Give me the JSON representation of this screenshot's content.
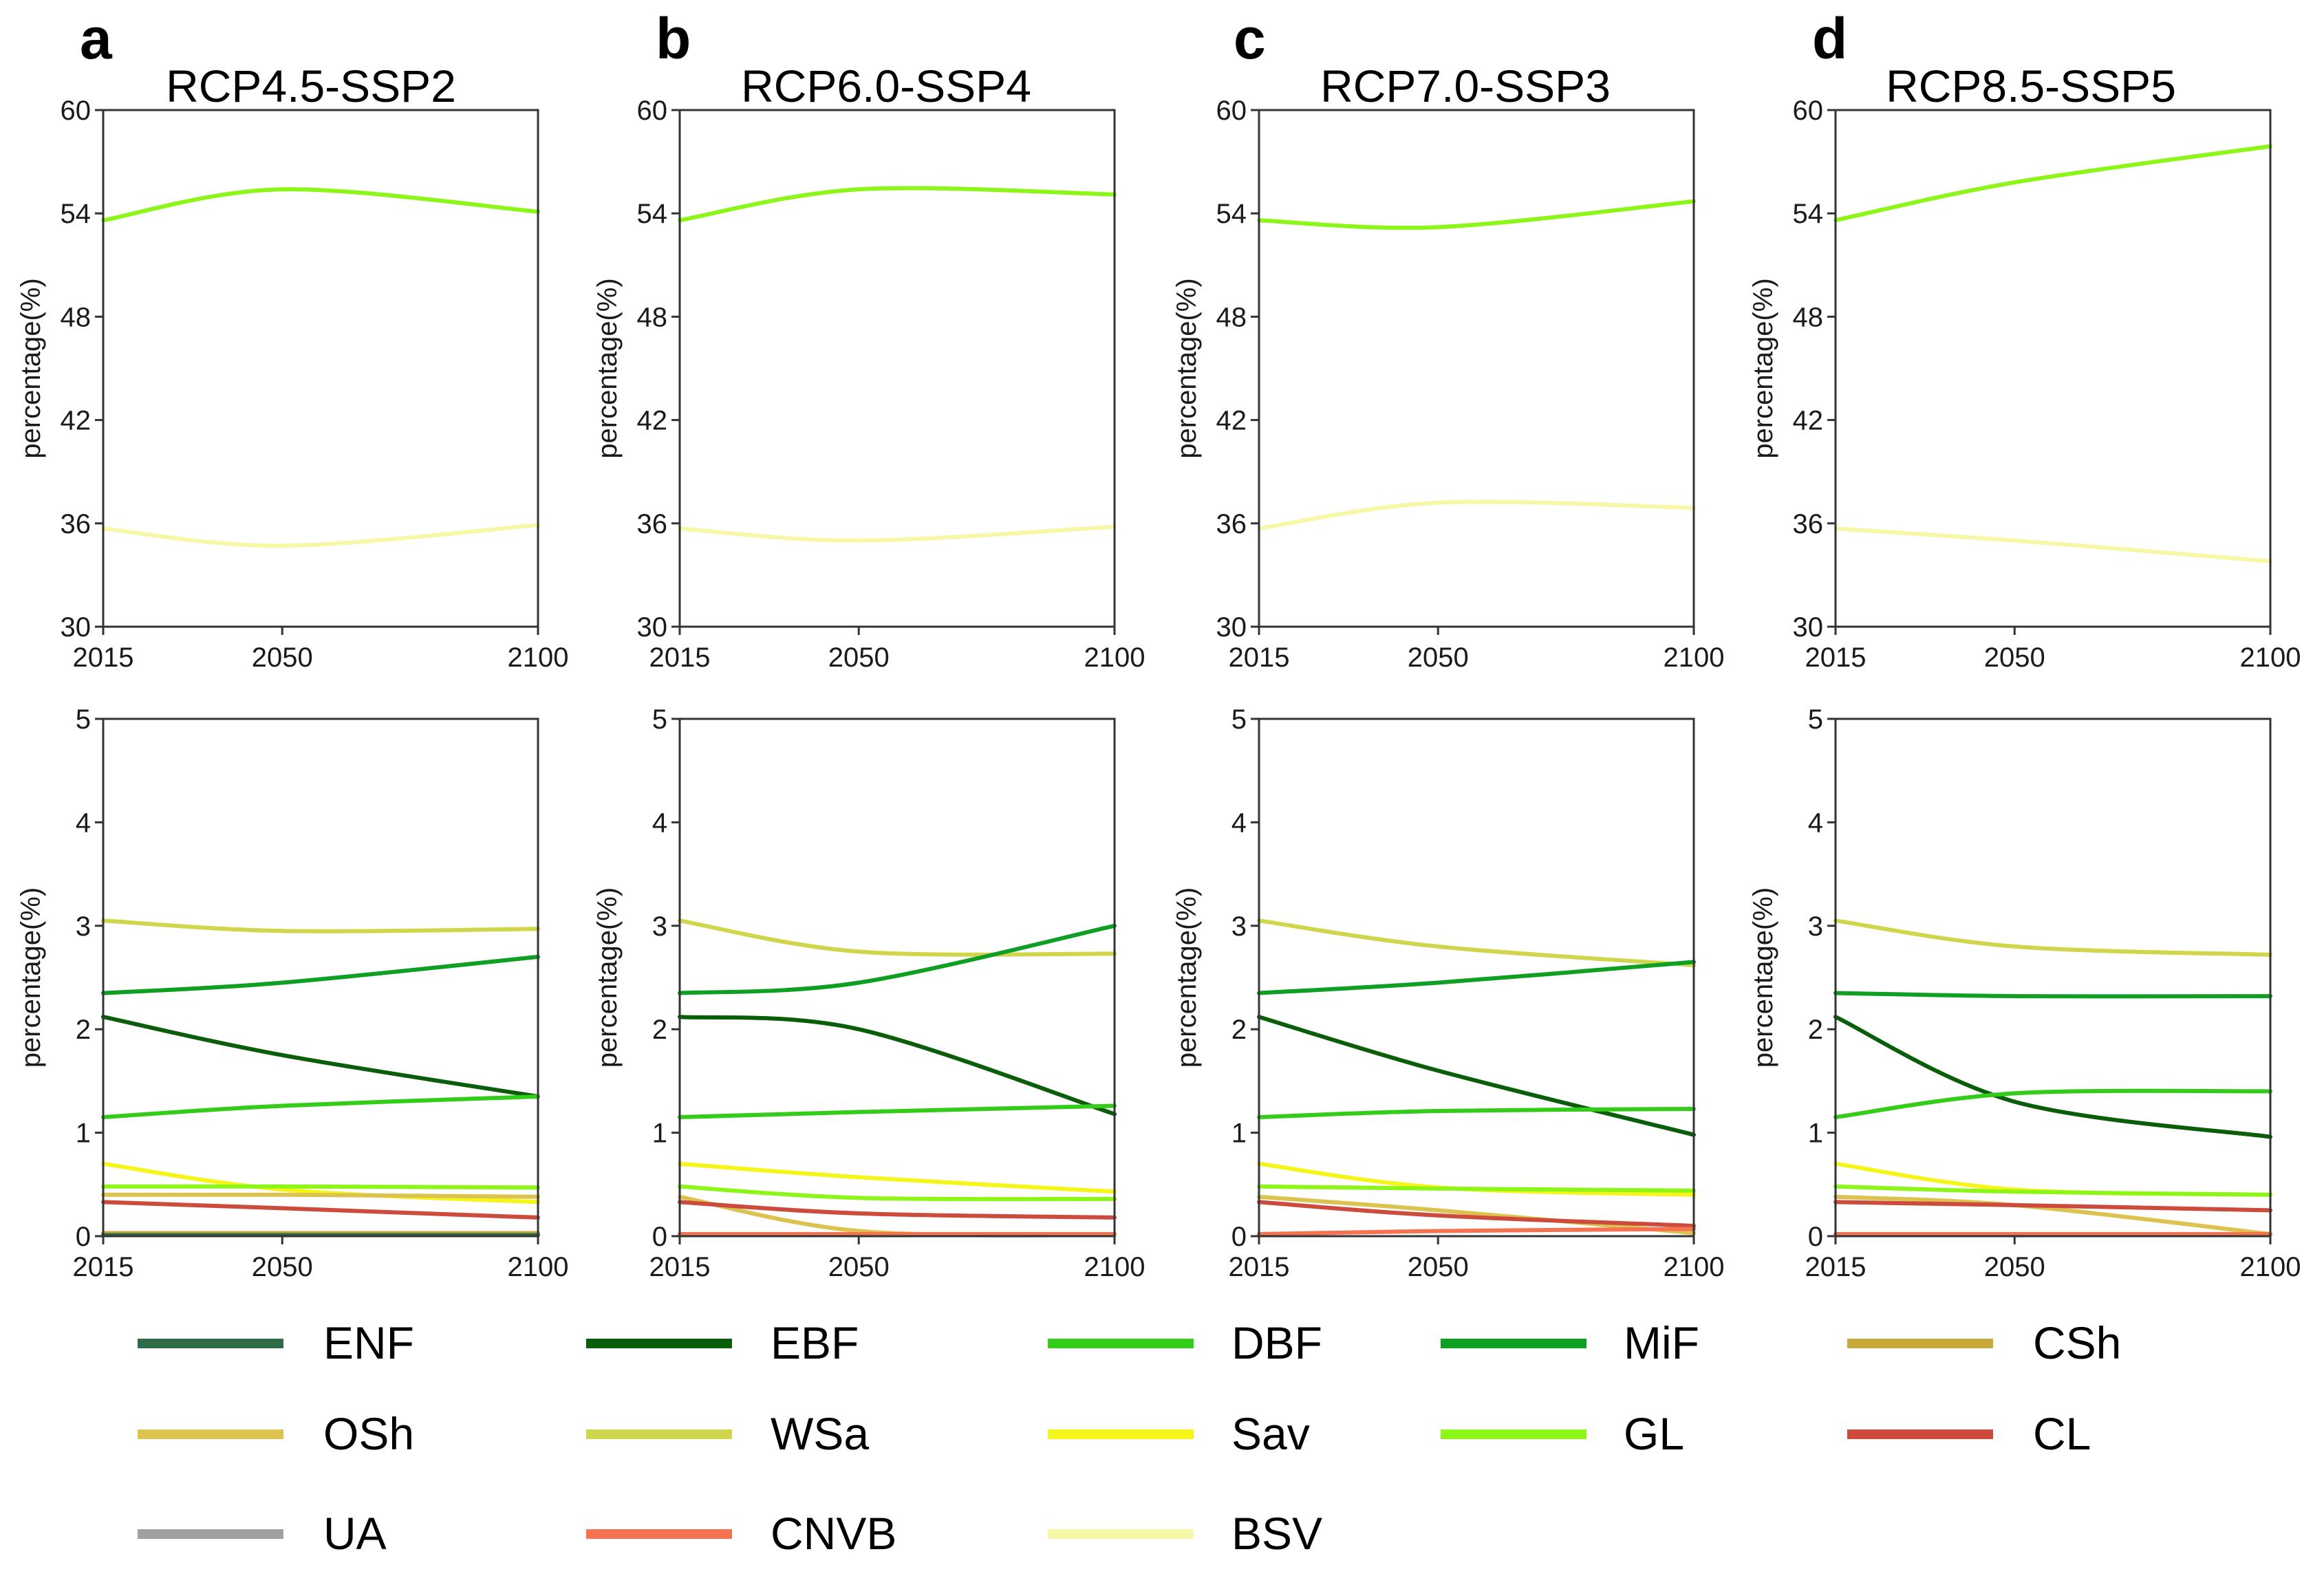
{
  "colors": {
    "ENF": "#2e6b48",
    "EBF": "#0a5e0a",
    "DBF": "#33cc19",
    "MiF": "#0f9f22",
    "CSh": "#c8aa3c",
    "OSh": "#dcc24e",
    "WSa": "#cfd64c",
    "Sav": "#f5f519",
    "GL": "#8ef519",
    "CL": "#cc4b3c",
    "UA": "#a0a0a0",
    "CNVB": "#f57350",
    "BSV": "#f7f7a8"
  },
  "legend": [
    "ENF",
    "EBF",
    "DBF",
    "MiF",
    "CSh",
    "OSh",
    "WSa",
    "Sav",
    "GL",
    "CL",
    "UA",
    "CNVB",
    "BSV"
  ],
  "chart_data": [
    {
      "panel": "a",
      "title": "RCP4.5-SSP2",
      "row": "top",
      "type": "line",
      "x": [
        2015,
        2050,
        2100
      ],
      "ylim": [
        30,
        60
      ],
      "yticks": [
        30,
        36,
        42,
        48,
        54,
        60
      ],
      "ylabel": "percentage(%)",
      "series": [
        {
          "name": "GL",
          "values": [
            53.6,
            55.4,
            54.1
          ]
        },
        {
          "name": "BSV",
          "values": [
            35.7,
            34.7,
            35.9
          ]
        }
      ]
    },
    {
      "panel": "b",
      "title": "RCP6.0-SSP4",
      "row": "top",
      "type": "line",
      "x": [
        2015,
        2050,
        2100
      ],
      "ylim": [
        30,
        60
      ],
      "yticks": [
        30,
        36,
        42,
        48,
        54,
        60
      ],
      "ylabel": "percentage(%)",
      "series": [
        {
          "name": "GL",
          "values": [
            53.6,
            55.4,
            55.1
          ]
        },
        {
          "name": "BSV",
          "values": [
            35.7,
            35.0,
            35.8
          ]
        }
      ]
    },
    {
      "panel": "c",
      "title": "RCP7.0-SSP3",
      "row": "top",
      "type": "line",
      "x": [
        2015,
        2050,
        2100
      ],
      "ylim": [
        30,
        60
      ],
      "yticks": [
        30,
        36,
        42,
        48,
        54,
        60
      ],
      "ylabel": "percentage(%)",
      "series": [
        {
          "name": "GL",
          "values": [
            53.6,
            53.2,
            54.7
          ]
        },
        {
          "name": "BSV",
          "values": [
            35.7,
            37.2,
            36.9
          ]
        }
      ]
    },
    {
      "panel": "d",
      "title": "RCP8.5-SSP5",
      "row": "top",
      "type": "line",
      "x": [
        2015,
        2050,
        2100
      ],
      "ylim": [
        30,
        60
      ],
      "yticks": [
        30,
        36,
        42,
        48,
        54,
        60
      ],
      "ylabel": "percentage(%)",
      "series": [
        {
          "name": "GL",
          "values": [
            53.6,
            55.8,
            57.9
          ]
        },
        {
          "name": "BSV",
          "values": [
            35.7,
            35.0,
            33.8
          ]
        }
      ]
    },
    {
      "panel": "a",
      "row": "bottom",
      "type": "line",
      "x": [
        2015,
        2050,
        2100
      ],
      "ylim": [
        0,
        5
      ],
      "yticks": [
        0,
        1,
        2,
        3,
        4,
        5
      ],
      "ylabel": "percentage(%)",
      "series": [
        {
          "name": "WSa",
          "values": [
            3.05,
            2.95,
            2.97
          ]
        },
        {
          "name": "MiF",
          "values": [
            2.35,
            2.45,
            2.7
          ]
        },
        {
          "name": "EBF",
          "values": [
            2.12,
            1.75,
            1.35
          ]
        },
        {
          "name": "DBF",
          "values": [
            1.15,
            1.26,
            1.35
          ]
        },
        {
          "name": "Sav",
          "values": [
            0.7,
            0.45,
            0.33
          ]
        },
        {
          "name": "GL",
          "values": [
            0.48,
            0.48,
            0.47
          ]
        },
        {
          "name": "OSh",
          "values": [
            0.4,
            0.4,
            0.38
          ]
        },
        {
          "name": "CL",
          "values": [
            0.33,
            0.27,
            0.18
          ]
        },
        {
          "name": "CSh",
          "values": [
            0.03,
            0.03,
            0.03
          ]
        },
        {
          "name": "ENF",
          "values": [
            0.01,
            0.01,
            0.01
          ]
        }
      ]
    },
    {
      "panel": "b",
      "row": "bottom",
      "type": "line",
      "x": [
        2015,
        2050,
        2100
      ],
      "ylim": [
        0,
        5
      ],
      "yticks": [
        0,
        1,
        2,
        3,
        4,
        5
      ],
      "ylabel": "percentage(%)",
      "series": [
        {
          "name": "WSa",
          "values": [
            3.05,
            2.75,
            2.73
          ]
        },
        {
          "name": "MiF",
          "values": [
            2.35,
            2.45,
            3.0
          ]
        },
        {
          "name": "EBF",
          "values": [
            2.12,
            2.0,
            1.18
          ]
        },
        {
          "name": "DBF",
          "values": [
            1.15,
            1.2,
            1.26
          ]
        },
        {
          "name": "Sav",
          "values": [
            0.7,
            0.57,
            0.43
          ]
        },
        {
          "name": "GL",
          "values": [
            0.48,
            0.37,
            0.36
          ]
        },
        {
          "name": "OSh",
          "values": [
            0.38,
            0.05,
            0.01
          ]
        },
        {
          "name": "CL",
          "values": [
            0.33,
            0.22,
            0.18
          ]
        },
        {
          "name": "CNVB",
          "values": [
            0.02,
            0.02,
            0.02
          ]
        }
      ]
    },
    {
      "panel": "c",
      "row": "bottom",
      "type": "line",
      "x": [
        2015,
        2050,
        2100
      ],
      "ylim": [
        0,
        5
      ],
      "yticks": [
        0,
        1,
        2,
        3,
        4,
        5
      ],
      "ylabel": "percentage(%)",
      "series": [
        {
          "name": "WSa",
          "values": [
            3.05,
            2.8,
            2.62
          ]
        },
        {
          "name": "MiF",
          "values": [
            2.35,
            2.45,
            2.65
          ]
        },
        {
          "name": "EBF",
          "values": [
            2.12,
            1.6,
            0.98
          ]
        },
        {
          "name": "DBF",
          "values": [
            1.15,
            1.21,
            1.23
          ]
        },
        {
          "name": "Sav",
          "values": [
            0.7,
            0.47,
            0.4
          ]
        },
        {
          "name": "GL",
          "values": [
            0.48,
            0.46,
            0.44
          ]
        },
        {
          "name": "OSh",
          "values": [
            0.38,
            0.25,
            0.03
          ]
        },
        {
          "name": "CL",
          "values": [
            0.33,
            0.2,
            0.1
          ]
        },
        {
          "name": "CNVB",
          "values": [
            0.02,
            0.05,
            0.07
          ]
        }
      ]
    },
    {
      "panel": "d",
      "row": "bottom",
      "type": "line",
      "x": [
        2015,
        2050,
        2100
      ],
      "ylim": [
        0,
        5
      ],
      "yticks": [
        0,
        1,
        2,
        3,
        4,
        5
      ],
      "ylabel": "percentage(%)",
      "series": [
        {
          "name": "WSa",
          "values": [
            3.05,
            2.8,
            2.72
          ]
        },
        {
          "name": "MiF",
          "values": [
            2.35,
            2.32,
            2.32
          ]
        },
        {
          "name": "EBF",
          "values": [
            2.12,
            1.3,
            0.96
          ]
        },
        {
          "name": "DBF",
          "values": [
            1.15,
            1.38,
            1.4
          ]
        },
        {
          "name": "Sav",
          "values": [
            0.7,
            0.45,
            0.4
          ]
        },
        {
          "name": "GL",
          "values": [
            0.48,
            0.43,
            0.4
          ]
        },
        {
          "name": "OSh",
          "values": [
            0.38,
            0.3,
            0.02
          ]
        },
        {
          "name": "CL",
          "values": [
            0.33,
            0.3,
            0.25
          ]
        },
        {
          "name": "CNVB",
          "values": [
            0.02,
            0.02,
            0.02
          ]
        }
      ]
    }
  ]
}
